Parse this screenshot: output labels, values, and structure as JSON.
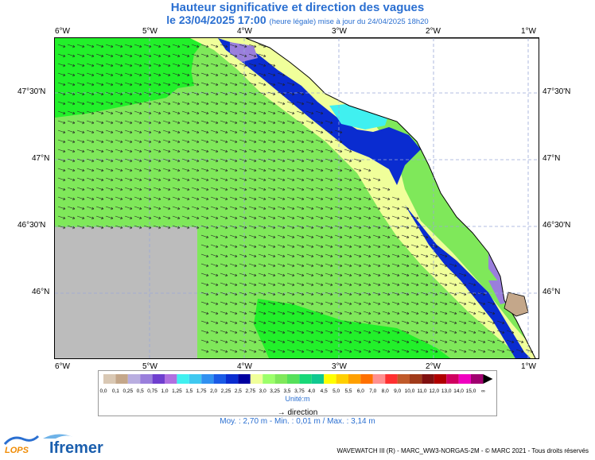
{
  "title": "Hauteur significative et direction des vagues",
  "subtitle": {
    "date": "le 23/04/2025 17:00",
    "note": "(heure légale) mise à jour du 24/04/2025 18h20"
  },
  "axes": {
    "lon_labels": [
      "6°W",
      "5°W",
      "4°W",
      "3°W",
      "2°W",
      "1°W"
    ],
    "lat_labels": [
      "47°30'N",
      "47°N",
      "46°30'N",
      "46°N"
    ]
  },
  "legend": {
    "values": [
      "0,0",
      "0,1",
      "0,25",
      "0,5",
      "0,75",
      "1,0",
      "1,25",
      "1,5",
      "1,75",
      "2,0",
      "2,25",
      "2,5",
      "2,75",
      "3,0",
      "3,25",
      "3,5",
      "3,75",
      "4,0",
      "4,5",
      "5,0",
      "5,5",
      "6,0",
      "7,0",
      "8,0",
      "9,0",
      "10,0",
      "11,0",
      "12,0",
      "13,0",
      "14,0",
      "15,0",
      "∞"
    ],
    "colors": [
      "#d9c8b4",
      "#c4a78a",
      "#b9aee0",
      "#9a7fdc",
      "#6f3fcf",
      "#b070e0",
      "#40f0f0",
      "#3fc8f0",
      "#3090f0",
      "#1a5ae6",
      "#0a2cd0",
      "#0000a0",
      "#f0ff9a",
      "#9cff6a",
      "#7fe85a",
      "#55e05a",
      "#18d878",
      "#10c890",
      "#ffff00",
      "#ffd000",
      "#ffa000",
      "#ff7000",
      "#ff9090",
      "#ff3030",
      "#c05a2a",
      "#a03a1a",
      "#801010",
      "#b00000",
      "#d00060",
      "#f000c0",
      "#a00070"
    ],
    "unit": "Unité:m",
    "direction_label": "direction"
  },
  "stats": "Moy. : 2,70 m  -  Min. : 0,01 m / Max. : 3,14 m",
  "footer": "WAVEWATCH III (R) - MARC_WW3-NORGAS-2M - © MARC 2021 - Tous droits réservés",
  "logos": {
    "lops": "LOPS",
    "ifremer": "Ifremer"
  },
  "map_colors": {
    "sea_green": "#7fe85a",
    "bright_green": "#22f02a",
    "pale_yellow": "#f0ff9a",
    "coast_blue": "#0a2cd0",
    "deep_blue": "#0000a0",
    "cyan": "#40f0f0",
    "purple": "#9a7fdc",
    "land": "#ffffff",
    "no_data": "#bcbcbc"
  }
}
